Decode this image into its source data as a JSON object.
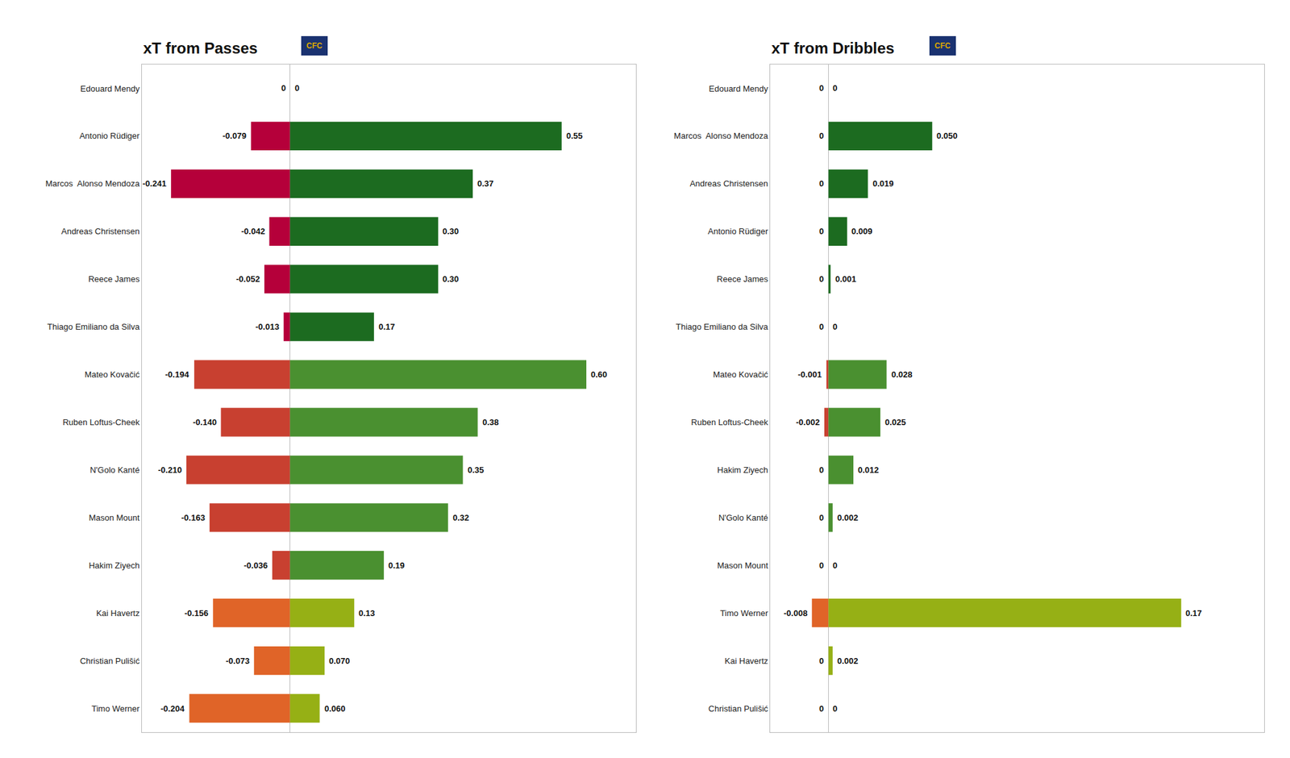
{
  "chart_data": [
    {
      "type": "bar",
      "orientation": "horizontal",
      "title": "xT from Passes",
      "categories": [
        "Edouard Mendy",
        "Antonio Rüdiger",
        "Marcos  Alonso Mendoza",
        "Andreas Christensen",
        "Reece James",
        "Thiago Emiliano da Silva",
        "Mateo Kovačić",
        "Ruben Loftus-Cheek",
        "N'Golo Kanté",
        "Mason Mount",
        "Hakim Ziyech",
        "Kai Havertz",
        "Christian Pulišić",
        "Timo Werner"
      ],
      "series": [
        {
          "values": [
            0,
            -0.079,
            -0.241,
            -0.042,
            -0.052,
            -0.013,
            -0.194,
            -0.14,
            -0.21,
            -0.163,
            -0.036,
            -0.156,
            -0.073,
            -0.204
          ],
          "value_labels": [
            "0",
            "-0.079",
            "-0.241",
            "-0.042",
            "-0.052",
            "-0.013",
            "-0.194",
            "-0.140",
            "-0.210",
            "-0.163",
            "-0.036",
            "-0.156",
            "-0.073",
            "-0.204"
          ],
          "colors": [
            "#B5003A",
            "#B5003A",
            "#B5003A",
            "#B5003A",
            "#B5003A",
            "#B5003A",
            "#C84030",
            "#C84030",
            "#C84030",
            "#C84030",
            "#C84030",
            "#E06428",
            "#E06428",
            "#E06428"
          ]
        },
        {
          "values": [
            0,
            0.55,
            0.37,
            0.3,
            0.3,
            0.17,
            0.6,
            0.38,
            0.35,
            0.32,
            0.19,
            0.13,
            0.07,
            0.06
          ],
          "value_labels": [
            "0",
            "0.55",
            "0.37",
            "0.30",
            "0.30",
            "0.17",
            "0.60",
            "0.38",
            "0.35",
            "0.32",
            "0.19",
            "0.13",
            "0.070",
            "0.060"
          ],
          "colors": [
            "#1C6B20",
            "#1C6B20",
            "#1C6B20",
            "#1C6B20",
            "#1C6B20",
            "#1C6B20",
            "#4A9030",
            "#4A9030",
            "#4A9030",
            "#4A9030",
            "#4A9030",
            "#96B015",
            "#96B015",
            "#96B015"
          ]
        }
      ],
      "xlim": [
        -0.3,
        0.7
      ],
      "data_labels": true,
      "tick_labels": "y",
      "grid": false,
      "annotations": [
        "CFC"
      ]
    },
    {
      "type": "bar",
      "orientation": "horizontal",
      "title": "xT from Dribbles",
      "categories": [
        "Edouard Mendy",
        "Marcos  Alonso Mendoza",
        "Andreas Christensen",
        "Antonio Rüdiger",
        "Reece James",
        "Thiago Emiliano da Silva",
        "Mateo Kovačić",
        "Ruben Loftus-Cheek",
        "Hakim Ziyech",
        "N'Golo Kanté",
        "Mason Mount",
        "Timo Werner",
        "Kai Havertz",
        "Christian Pulišić"
      ],
      "series": [
        {
          "values": [
            0,
            0,
            0,
            0,
            0,
            0,
            -0.001,
            -0.002,
            0,
            0,
            0,
            -0.008,
            0,
            0
          ],
          "value_labels": [
            "0",
            "0",
            "0",
            "0",
            "0",
            "0",
            "-0.001",
            "-0.002",
            "0",
            "0",
            "0",
            "-0.008",
            "0",
            "0"
          ],
          "colors": [
            "#B5003A",
            "#B5003A",
            "#B5003A",
            "#B5003A",
            "#B5003A",
            "#B5003A",
            "#C84030",
            "#C84030",
            "#C84030",
            "#C84030",
            "#C84030",
            "#E06428",
            "#E06428",
            "#E06428"
          ]
        },
        {
          "values": [
            0,
            0.05,
            0.019,
            0.009,
            0.001,
            0,
            0.028,
            0.025,
            0.012,
            0.002,
            0,
            0.17,
            0.002,
            0
          ],
          "value_labels": [
            "0",
            "0.050",
            "0.019",
            "0.009",
            "0.001",
            "0",
            "0.028",
            "0.025",
            "0.012",
            "0.002",
            "0",
            "0.17",
            "0.002",
            "0"
          ],
          "colors": [
            "#1C6B20",
            "#1C6B20",
            "#1C6B20",
            "#1C6B20",
            "#1C6B20",
            "#1C6B20",
            "#4A9030",
            "#4A9030",
            "#4A9030",
            "#4A9030",
            "#4A9030",
            "#96B015",
            "#96B015",
            "#96B015"
          ]
        }
      ],
      "xlim": [
        -0.028,
        0.21
      ],
      "data_labels": true,
      "tick_labels": "y",
      "grid": false,
      "annotations": [
        "CFC"
      ]
    }
  ]
}
